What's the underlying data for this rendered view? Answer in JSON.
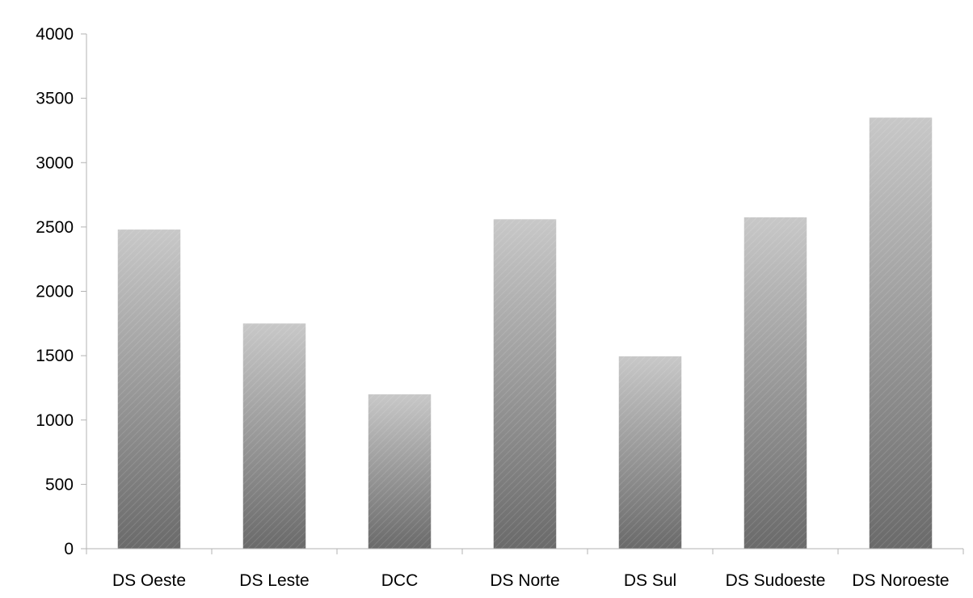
{
  "chart_data": {
    "type": "bar",
    "title": "",
    "xlabel": "",
    "ylabel": "",
    "categories": [
      "DS Oeste",
      "DS Leste",
      "DCC",
      "DS Norte",
      "DS Sul",
      "DS Sudoeste",
      "DS Noroeste"
    ],
    "values": [
      2480,
      1750,
      1200,
      2560,
      1495,
      2575,
      3350
    ],
    "ylim": [
      0,
      4000
    ],
    "yticks": [
      0,
      500,
      1000,
      1500,
      2000,
      2500,
      3000,
      3500,
      4000
    ],
    "grid": false,
    "legend": "none",
    "colors": {
      "bar_top": "#c8c8c8",
      "bar_bottom": "#6a6a6a",
      "axis": "#b3b3b3"
    }
  }
}
